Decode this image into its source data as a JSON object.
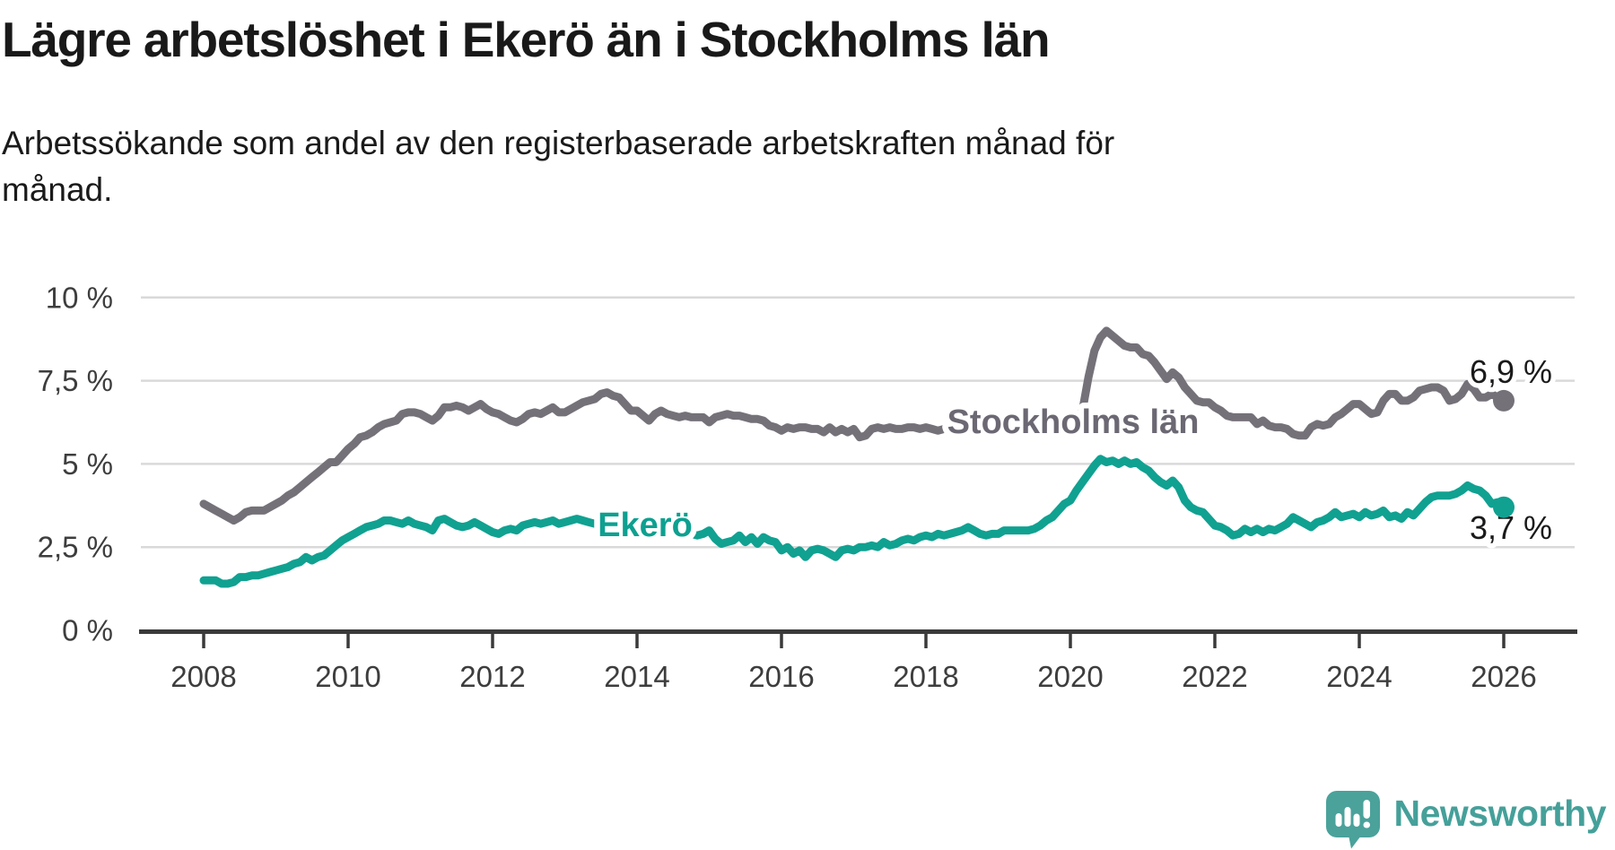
{
  "header": {
    "title": "Lägre arbetslöshet i Ekerö än i Stockholms län",
    "subtitle_lines": [
      "Arbetssökande som andel av den registerbaserade arbetskraften månad för",
      "månad."
    ]
  },
  "chart_data": {
    "type": "line",
    "unit": "%",
    "frequency": "monthly",
    "x_start": "2008-01",
    "x_end": "2026-01",
    "grid": "horizontal",
    "legend_position": "inline-labels",
    "ylim": [
      0,
      10
    ],
    "y_tick_values": [
      0,
      2.5,
      5,
      7.5,
      10
    ],
    "y_tick_labels": [
      "0 %",
      "2,5 %",
      "5 %",
      "7,5 %",
      "10 %"
    ],
    "x_tick_values": [
      2008,
      2010,
      2012,
      2014,
      2016,
      2018,
      2020,
      2022,
      2024,
      2026
    ],
    "x_tick_labels": [
      "2008",
      "2010",
      "2012",
      "2014",
      "2016",
      "2018",
      "2020",
      "2022",
      "2024",
      "2026"
    ],
    "grid_color": "#D9D9D9",
    "axis_color": "#3A3A3A",
    "label_color": "#3D3D3D",
    "end_label_color": "#1A1A1A",
    "series": [
      {
        "name": "Stockholms län",
        "color": "#757179",
        "label_color": "#6C6873",
        "end_label": "6,9 %",
        "last_value": 6.9,
        "values": [
          3.8,
          3.7,
          3.6,
          3.5,
          3.4,
          3.3,
          3.4,
          3.55,
          3.6,
          3.6,
          3.6,
          3.7,
          3.8,
          3.9,
          4.05,
          4.15,
          4.3,
          4.45,
          4.6,
          4.75,
          4.9,
          5.05,
          5.05,
          5.25,
          5.45,
          5.6,
          5.8,
          5.85,
          5.95,
          6.1,
          6.2,
          6.25,
          6.3,
          6.5,
          6.55,
          6.55,
          6.5,
          6.4,
          6.3,
          6.45,
          6.7,
          6.7,
          6.75,
          6.7,
          6.6,
          6.7,
          6.8,
          6.65,
          6.55,
          6.5,
          6.4,
          6.3,
          6.25,
          6.35,
          6.5,
          6.55,
          6.5,
          6.6,
          6.7,
          6.55,
          6.55,
          6.65,
          6.75,
          6.85,
          6.9,
          6.95,
          7.1,
          7.15,
          7.05,
          7.0,
          6.8,
          6.6,
          6.6,
          6.45,
          6.3,
          6.5,
          6.6,
          6.5,
          6.45,
          6.4,
          6.45,
          6.4,
          6.4,
          6.4,
          6.25,
          6.4,
          6.45,
          6.5,
          6.45,
          6.45,
          6.4,
          6.35,
          6.35,
          6.3,
          6.15,
          6.1,
          6.0,
          6.1,
          6.05,
          6.1,
          6.1,
          6.05,
          6.05,
          5.95,
          6.1,
          5.95,
          6.05,
          5.95,
          6.05,
          5.8,
          5.85,
          6.05,
          6.1,
          6.05,
          6.1,
          6.05,
          6.05,
          6.1,
          6.1,
          6.05,
          6.1,
          6.05,
          6.0,
          6.05,
          6.1,
          6.05,
          6.0,
          6.05,
          6.1,
          6.1,
          6.15,
          6.1,
          6.1,
          6.15,
          6.2,
          6.15,
          6.2,
          6.2,
          6.25,
          6.2,
          6.3,
          6.3,
          6.3,
          6.3,
          6.3,
          6.35,
          6.6,
          7.6,
          8.4,
          8.8,
          9.0,
          8.85,
          8.7,
          8.55,
          8.5,
          8.5,
          8.3,
          8.25,
          8.05,
          7.8,
          7.55,
          7.75,
          7.6,
          7.3,
          7.1,
          6.9,
          6.85,
          6.85,
          6.7,
          6.6,
          6.45,
          6.4,
          6.4,
          6.4,
          6.4,
          6.2,
          6.3,
          6.15,
          6.1,
          6.1,
          6.05,
          5.9,
          5.85,
          5.85,
          6.1,
          6.2,
          6.15,
          6.2,
          6.4,
          6.5,
          6.65,
          6.8,
          6.8,
          6.65,
          6.5,
          6.55,
          6.9,
          7.1,
          7.1,
          6.9,
          6.9,
          7.0,
          7.2,
          7.25,
          7.3,
          7.3,
          7.2,
          6.9,
          6.95,
          7.1,
          7.4,
          7.25,
          7.0,
          7.0,
          7.1,
          7.0,
          6.9
        ]
      },
      {
        "name": "Ekerö",
        "color": "#10A191",
        "label_color": "#0DA090",
        "end_label": "3,7 %",
        "last_value": 3.7,
        "values": [
          1.5,
          1.5,
          1.5,
          1.4,
          1.4,
          1.45,
          1.6,
          1.6,
          1.65,
          1.65,
          1.7,
          1.75,
          1.8,
          1.85,
          1.9,
          2.0,
          2.05,
          2.2,
          2.1,
          2.2,
          2.25,
          2.4,
          2.55,
          2.7,
          2.8,
          2.9,
          3.0,
          3.1,
          3.15,
          3.2,
          3.3,
          3.3,
          3.25,
          3.2,
          3.3,
          3.2,
          3.15,
          3.1,
          3.0,
          3.3,
          3.35,
          3.25,
          3.15,
          3.1,
          3.15,
          3.25,
          3.15,
          3.05,
          2.95,
          2.9,
          3.0,
          3.05,
          3.0,
          3.15,
          3.2,
          3.25,
          3.2,
          3.25,
          3.3,
          3.2,
          3.25,
          3.3,
          3.35,
          3.3,
          3.25,
          3.2,
          3.25,
          3.3,
          3.2,
          3.15,
          3.2,
          3.15,
          3.2,
          3.15,
          3.1,
          3.05,
          3.1,
          3.05,
          3.0,
          2.95,
          2.9,
          2.9,
          2.85,
          2.9,
          3.0,
          2.75,
          2.6,
          2.65,
          2.7,
          2.85,
          2.65,
          2.8,
          2.6,
          2.8,
          2.7,
          2.65,
          2.4,
          2.5,
          2.3,
          2.4,
          2.2,
          2.4,
          2.45,
          2.4,
          2.3,
          2.2,
          2.4,
          2.45,
          2.4,
          2.5,
          2.5,
          2.55,
          2.5,
          2.65,
          2.55,
          2.6,
          2.7,
          2.75,
          2.7,
          2.8,
          2.85,
          2.8,
          2.9,
          2.85,
          2.9,
          2.95,
          3.0,
          3.1,
          3.0,
          2.9,
          2.85,
          2.9,
          2.9,
          3.0,
          3.0,
          3.0,
          3.0,
          3.0,
          3.05,
          3.15,
          3.3,
          3.4,
          3.6,
          3.8,
          3.9,
          4.2,
          4.45,
          4.7,
          4.95,
          5.15,
          5.05,
          5.1,
          5.0,
          5.1,
          5.0,
          5.05,
          4.9,
          4.8,
          4.6,
          4.45,
          4.35,
          4.5,
          4.3,
          3.9,
          3.7,
          3.6,
          3.55,
          3.35,
          3.15,
          3.1,
          3.0,
          2.85,
          2.9,
          3.05,
          2.95,
          3.05,
          2.95,
          3.05,
          3.0,
          3.1,
          3.2,
          3.4,
          3.3,
          3.2,
          3.1,
          3.25,
          3.3,
          3.4,
          3.55,
          3.4,
          3.45,
          3.5,
          3.4,
          3.55,
          3.45,
          3.5,
          3.6,
          3.4,
          3.45,
          3.35,
          3.55,
          3.45,
          3.65,
          3.85,
          4.0,
          4.05,
          4.05,
          4.05,
          4.1,
          4.2,
          4.35,
          4.25,
          4.2,
          4.05,
          3.8,
          3.85,
          3.7
        ]
      }
    ]
  },
  "footer": {
    "brand": "Newsworthy",
    "brand_color": "#45A09A",
    "logo_icon": "speech-bubble-bar-chart"
  }
}
